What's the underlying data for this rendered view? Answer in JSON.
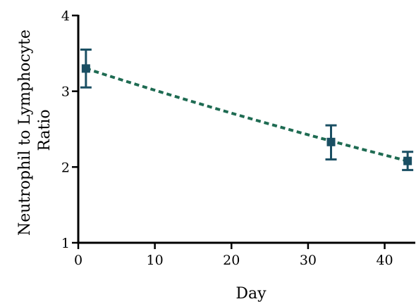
{
  "chart_data": {
    "type": "scatter",
    "xlabel": "Day",
    "ylabel": "Neutrophil to Lymphocyte Ratio",
    "ylabel_lines": [
      "Neutrophil to Lymphocyte",
      "Ratio"
    ],
    "xlim": [
      0,
      44
    ],
    "ylim": [
      1,
      4
    ],
    "xticks": [
      0,
      10,
      20,
      30,
      40
    ],
    "yticks": [
      1,
      2,
      3,
      4
    ],
    "grid": false,
    "series": [
      {
        "x": [
          1,
          33,
          43
        ],
        "y": [
          3.3,
          2.33,
          2.08
        ],
        "error_low": [
          3.05,
          2.1,
          1.96
        ],
        "error_high": [
          3.55,
          2.55,
          2.2
        ],
        "marker": "square",
        "color": "#1a4f63"
      }
    ],
    "trendline": {
      "style": "dashed",
      "color": "#1e6b52",
      "x": [
        1,
        43
      ],
      "y": [
        3.3,
        2.08
      ],
      "curve": "slight-convex"
    }
  }
}
